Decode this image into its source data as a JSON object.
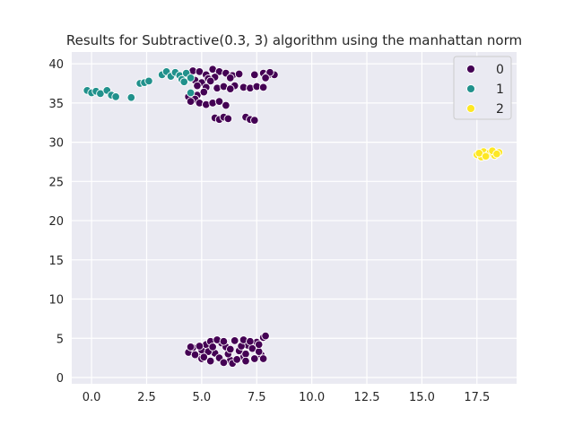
{
  "chart_data": {
    "type": "scatter",
    "title": "Results for Subtractive(0.3, 3) algorithm using the manhattan norm",
    "xlabel": "",
    "ylabel": "",
    "xlim": [
      -0.9,
      19.3
    ],
    "ylim": [
      -0.8,
      41.5
    ],
    "xticks": [
      "0.0",
      "2.5",
      "5.0",
      "7.5",
      "10.0",
      "12.5",
      "15.0",
      "17.5"
    ],
    "xtick_values": [
      0,
      2.5,
      5,
      7.5,
      10,
      12.5,
      15,
      17.5
    ],
    "yticks": [
      "0",
      "5",
      "10",
      "15",
      "20",
      "25",
      "30",
      "35",
      "40"
    ],
    "ytick_values": [
      0,
      5,
      10,
      15,
      20,
      25,
      30,
      35,
      40
    ],
    "grid": true,
    "legend_position": "top-right",
    "colors": {
      "background": "#eaeaf2",
      "grid": "#ffffff"
    },
    "series": [
      {
        "name": "0",
        "color": "#440154",
        "points": [
          [
            4.6,
            39.1
          ],
          [
            4.9,
            39.0
          ],
          [
            5.2,
            38.6
          ],
          [
            5.5,
            39.3
          ],
          [
            5.8,
            39.0
          ],
          [
            6.1,
            38.8
          ],
          [
            5.6,
            38.3
          ],
          [
            5.3,
            38.1
          ],
          [
            6.4,
            38.5
          ],
          [
            6.7,
            38.7
          ],
          [
            6.3,
            38.2
          ],
          [
            7.4,
            38.6
          ],
          [
            7.8,
            38.8
          ],
          [
            8.0,
            38.5
          ],
          [
            8.3,
            38.6
          ],
          [
            8.1,
            38.9
          ],
          [
            7.9,
            38.2
          ],
          [
            4.7,
            37.9
          ],
          [
            5.0,
            37.6
          ],
          [
            5.4,
            37.8
          ],
          [
            4.8,
            37.2
          ],
          [
            5.2,
            37.0
          ],
          [
            5.7,
            36.9
          ],
          [
            6.0,
            37.1
          ],
          [
            6.5,
            37.2
          ],
          [
            6.9,
            37.0
          ],
          [
            7.2,
            36.9
          ],
          [
            7.5,
            37.1
          ],
          [
            7.8,
            37.0
          ],
          [
            6.3,
            36.8
          ],
          [
            4.5,
            36.2
          ],
          [
            4.8,
            36.0
          ],
          [
            5.1,
            36.4
          ],
          [
            4.4,
            35.8
          ],
          [
            4.7,
            35.5
          ],
          [
            4.5,
            35.2
          ],
          [
            4.9,
            35.0
          ],
          [
            5.2,
            34.8
          ],
          [
            5.5,
            35.0
          ],
          [
            5.8,
            35.2
          ],
          [
            6.1,
            34.7
          ],
          [
            5.6,
            33.1
          ],
          [
            5.8,
            32.9
          ],
          [
            6.0,
            33.2
          ],
          [
            6.2,
            33.0
          ],
          [
            7.0,
            33.2
          ],
          [
            7.2,
            32.9
          ],
          [
            7.4,
            32.8
          ],
          [
            4.4,
            3.2
          ],
          [
            4.6,
            3.8
          ],
          [
            4.8,
            2.8
          ],
          [
            5.0,
            3.5
          ],
          [
            5.2,
            4.2
          ],
          [
            5.4,
            4.6
          ],
          [
            5.6,
            3.1
          ],
          [
            5.8,
            2.5
          ],
          [
            5.9,
            4.4
          ],
          [
            6.1,
            3.9
          ],
          [
            6.3,
            2.2
          ],
          [
            6.5,
            4.7
          ],
          [
            6.7,
            3.4
          ],
          [
            6.9,
            2.6
          ],
          [
            7.1,
            4.1
          ],
          [
            7.3,
            3.7
          ],
          [
            7.5,
            4.5
          ],
          [
            7.7,
            2.9
          ],
          [
            7.8,
            5.1
          ],
          [
            7.9,
            5.3
          ],
          [
            6.0,
            1.9
          ],
          [
            6.4,
            1.8
          ],
          [
            6.6,
            2.3
          ],
          [
            5.0,
            2.4
          ],
          [
            4.7,
            2.9
          ],
          [
            5.3,
            3.3
          ],
          [
            5.5,
            3.9
          ],
          [
            6.2,
            3.0
          ],
          [
            6.8,
            4.0
          ],
          [
            7.0,
            3.0
          ],
          [
            7.4,
            2.4
          ],
          [
            7.6,
            3.3
          ],
          [
            5.7,
            4.8
          ],
          [
            6.0,
            4.6
          ],
          [
            6.9,
            4.8
          ],
          [
            7.2,
            4.6
          ],
          [
            4.9,
            4.0
          ],
          [
            5.1,
            2.6
          ],
          [
            6.3,
            3.6
          ],
          [
            5.4,
            2.1
          ],
          [
            7.0,
            2.1
          ],
          [
            7.6,
            4.2
          ],
          [
            7.8,
            2.4
          ],
          [
            4.5,
            3.9
          ]
        ]
      },
      {
        "name": "1",
        "color": "#21918c",
        "points": [
          [
            -0.2,
            36.6
          ],
          [
            0.0,
            36.3
          ],
          [
            0.2,
            36.5
          ],
          [
            0.4,
            36.2
          ],
          [
            0.7,
            36.6
          ],
          [
            0.9,
            36.0
          ],
          [
            1.1,
            35.8
          ],
          [
            1.8,
            35.7
          ],
          [
            2.2,
            37.5
          ],
          [
            2.4,
            37.6
          ],
          [
            2.6,
            37.8
          ],
          [
            3.2,
            38.6
          ],
          [
            3.4,
            39.0
          ],
          [
            3.6,
            38.4
          ],
          [
            3.8,
            38.9
          ],
          [
            4.0,
            38.5
          ],
          [
            4.1,
            38.0
          ],
          [
            4.3,
            38.8
          ],
          [
            4.5,
            38.2
          ],
          [
            4.2,
            37.7
          ],
          [
            4.5,
            36.3
          ]
        ]
      },
      {
        "name": "2",
        "color": "#fde725",
        "points": [
          [
            17.5,
            28.4
          ],
          [
            17.7,
            28.1
          ],
          [
            17.8,
            28.8
          ],
          [
            18.0,
            28.4
          ],
          [
            18.1,
            28.7
          ],
          [
            18.3,
            28.3
          ],
          [
            18.5,
            28.7
          ],
          [
            17.6,
            28.6
          ],
          [
            17.9,
            28.2
          ],
          [
            18.2,
            28.9
          ],
          [
            18.4,
            28.5
          ]
        ]
      }
    ]
  }
}
